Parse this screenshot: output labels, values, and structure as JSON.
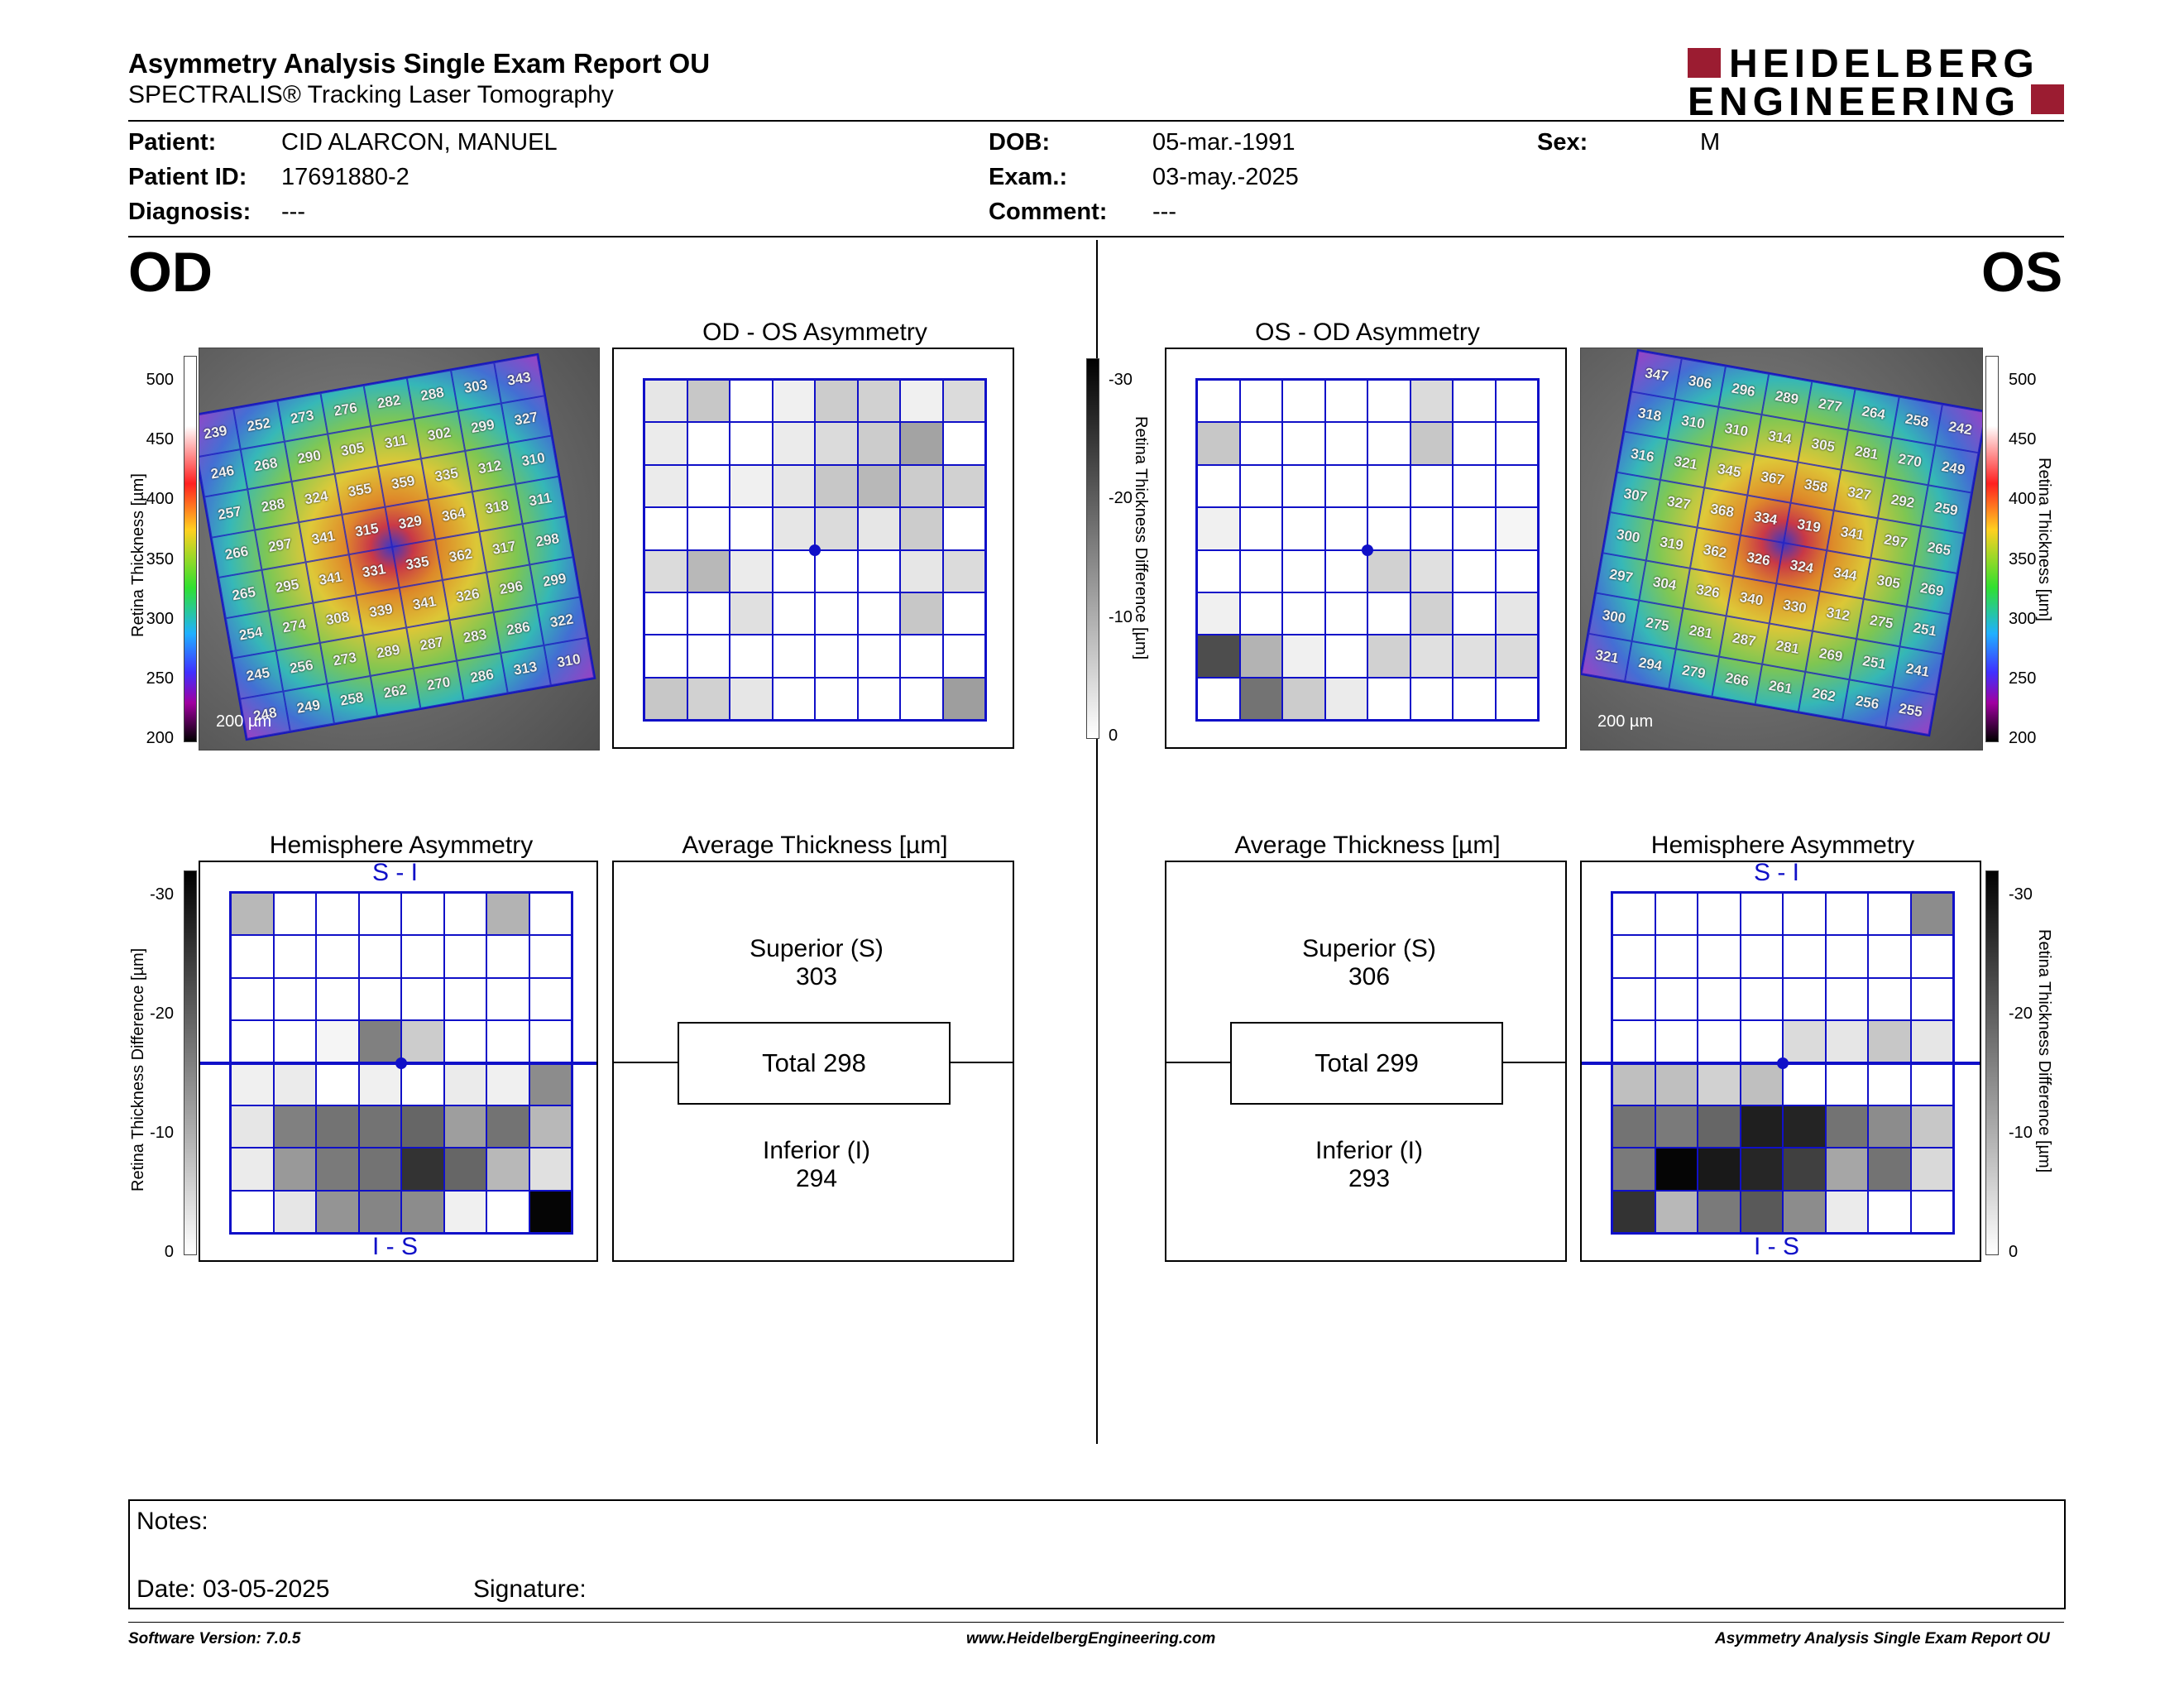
{
  "header": {
    "title": "Asymmetry Analysis Single Exam Report OU",
    "subtitle": "SPECTRALIS® Tracking Laser Tomography",
    "logo_line1": "HEIDELBERG",
    "logo_line2": "ENGINEERING",
    "logo_color": "#9b1c31"
  },
  "patient": {
    "patient_label": "Patient:",
    "patient_value": "CID ALARCON, MANUEL",
    "id_label": "Patient ID:",
    "id_value": "17691880-2",
    "diag_label": "Diagnosis:",
    "diag_value": "---",
    "dob_label": "DOB:",
    "dob_value": "05-mar.-1991",
    "exam_label": "Exam.:",
    "exam_value": "03-may.-2025",
    "comment_label": "Comment:",
    "comment_value": "---",
    "sex_label": "Sex:",
    "sex_value": "M"
  },
  "od": {
    "eye_label": "OD",
    "asym_title": "OD - OS Asymmetry",
    "hemi_title": "Hemisphere Asymmetry",
    "avg_title": "Average Thickness [µm]",
    "superior_label": "Superior (S)",
    "superior_value": "303",
    "total_label": "Total 298",
    "inferior_label": "Inferior (I)",
    "inferior_value": "294",
    "scale_label": "200 µm",
    "thickness": [
      [
        239,
        252,
        273,
        276,
        282,
        288,
        303,
        343
      ],
      [
        246,
        268,
        290,
        305,
        311,
        302,
        299,
        327
      ],
      [
        257,
        288,
        324,
        355,
        359,
        335,
        312,
        310
      ],
      [
        266,
        297,
        341,
        315,
        329,
        364,
        318,
        311
      ],
      [
        265,
        295,
        341,
        331,
        335,
        362,
        317,
        298
      ],
      [
        254,
        274,
        308,
        339,
        341,
        326,
        296,
        299
      ],
      [
        245,
        256,
        273,
        289,
        287,
        283,
        286,
        322
      ],
      [
        248,
        249,
        258,
        262,
        270,
        286,
        313,
        310
      ]
    ],
    "asym_grid": [
      [
        0.1,
        0.22,
        0,
        0.06,
        0.2,
        0.18,
        0.06,
        0.14
      ],
      [
        0.08,
        0,
        0,
        0.08,
        0.14,
        0.2,
        0.36,
        0
      ],
      [
        0.08,
        0,
        0.06,
        0.1,
        0.22,
        0.28,
        0.2,
        0.18
      ],
      [
        0,
        0,
        0,
        0.1,
        0.14,
        0.1,
        0.2,
        0
      ],
      [
        0.14,
        0.28,
        0.08,
        0,
        0,
        0,
        0.1,
        0.14
      ],
      [
        0,
        0,
        0.12,
        0,
        0,
        0,
        0.22,
        0
      ],
      [
        0,
        0,
        0,
        0,
        0,
        0,
        0,
        0
      ],
      [
        0.22,
        0.18,
        0.1,
        0,
        0,
        0,
        0,
        0.38
      ]
    ],
    "hemi_grid": [
      [
        0.28,
        0,
        0,
        0,
        0,
        0,
        0.3,
        0
      ],
      [
        0,
        0,
        0,
        0,
        0,
        0,
        0,
        0
      ],
      [
        0,
        0,
        0,
        0,
        0,
        0,
        0,
        0
      ],
      [
        0,
        0,
        0.04,
        0.5,
        0.2,
        0,
        0,
        0
      ],
      [
        0.06,
        0.08,
        0,
        0.06,
        0,
        0.08,
        0.06,
        0.45
      ],
      [
        0.1,
        0.5,
        0.55,
        0.55,
        0.6,
        0.38,
        0.55,
        0.28
      ],
      [
        0.08,
        0.4,
        0.52,
        0.55,
        0.8,
        0.6,
        0.28,
        0.12
      ],
      [
        0,
        0.1,
        0.42,
        0.48,
        0.45,
        0.06,
        0,
        0.98
      ]
    ]
  },
  "os": {
    "eye_label": "OS",
    "asym_title": "OS - OD Asymmetry",
    "hemi_title": "Hemisphere Asymmetry",
    "avg_title": "Average Thickness [µm]",
    "superior_label": "Superior (S)",
    "superior_value": "306",
    "total_label": "Total 299",
    "inferior_label": "Inferior (I)",
    "inferior_value": "293",
    "scale_label": "200 µm",
    "thickness": [
      [
        347,
        306,
        296,
        289,
        277,
        264,
        258,
        242
      ],
      [
        318,
        310,
        310,
        314,
        305,
        281,
        270,
        249
      ],
      [
        316,
        321,
        345,
        367,
        358,
        327,
        292,
        259
      ],
      [
        307,
        327,
        368,
        334,
        319,
        341,
        297,
        265
      ],
      [
        300,
        319,
        362,
        326,
        324,
        344,
        305,
        269
      ],
      [
        297,
        304,
        326,
        340,
        330,
        312,
        275,
        251
      ],
      [
        300,
        275,
        281,
        287,
        281,
        269,
        251,
        241
      ],
      [
        321,
        294,
        279,
        266,
        261,
        262,
        256,
        255
      ]
    ],
    "asym_grid": [
      [
        0,
        0,
        0,
        0,
        0,
        0.14,
        0,
        0
      ],
      [
        0.22,
        0,
        0,
        0,
        0,
        0.22,
        0,
        0
      ],
      [
        0,
        0,
        0,
        0,
        0,
        0,
        0,
        0
      ],
      [
        0.06,
        0,
        0,
        0,
        0,
        0,
        0,
        0.04
      ],
      [
        0,
        0,
        0,
        0,
        0.18,
        0.12,
        0,
        0
      ],
      [
        0.06,
        0,
        0,
        0,
        0,
        0.18,
        0,
        0.1
      ],
      [
        0.7,
        0.3,
        0.06,
        0,
        0.18,
        0.12,
        0.12,
        0.14
      ],
      [
        0,
        0.55,
        0.2,
        0.08,
        0,
        0,
        0,
        0
      ]
    ],
    "hemi_grid": [
      [
        0,
        0,
        0,
        0,
        0,
        0,
        0,
        0.45
      ],
      [
        0,
        0,
        0,
        0,
        0,
        0,
        0,
        0
      ],
      [
        0,
        0,
        0,
        0,
        0,
        0,
        0,
        0
      ],
      [
        0,
        0,
        0,
        0,
        0.14,
        0.1,
        0.22,
        0.1
      ],
      [
        0.25,
        0.25,
        0.18,
        0.25,
        0,
        0,
        0,
        0
      ],
      [
        0.55,
        0.52,
        0.6,
        0.88,
        0.86,
        0.55,
        0.45,
        0.22
      ],
      [
        0.52,
        0.98,
        0.9,
        0.85,
        0.75,
        0.35,
        0.55,
        0.15
      ],
      [
        0.8,
        0.28,
        0.52,
        0.65,
        0.45,
        0.08,
        0,
        0
      ]
    ]
  },
  "colorbars": {
    "thickness_label": "Retina  Thickness [µm]",
    "thickness_ticks": [
      "500",
      "450",
      "400",
      "350",
      "300",
      "250",
      "200"
    ],
    "diff_label": "Retina Thickness Difference [µm]",
    "diff_ticks": [
      "-30",
      "-20",
      "-10",
      "0"
    ]
  },
  "hemi_labels": {
    "top": "S - I",
    "bottom": "I - S"
  },
  "notes": {
    "notes_label": "Notes:",
    "date_label": "Date: 03-05-2025",
    "signature_label": "Signature:"
  },
  "footer": {
    "software": "Software Version: 7.0.5",
    "website": "www.HeidelbergEngineering.com",
    "report": "Asymmetry Analysis Single Exam Report OU"
  }
}
